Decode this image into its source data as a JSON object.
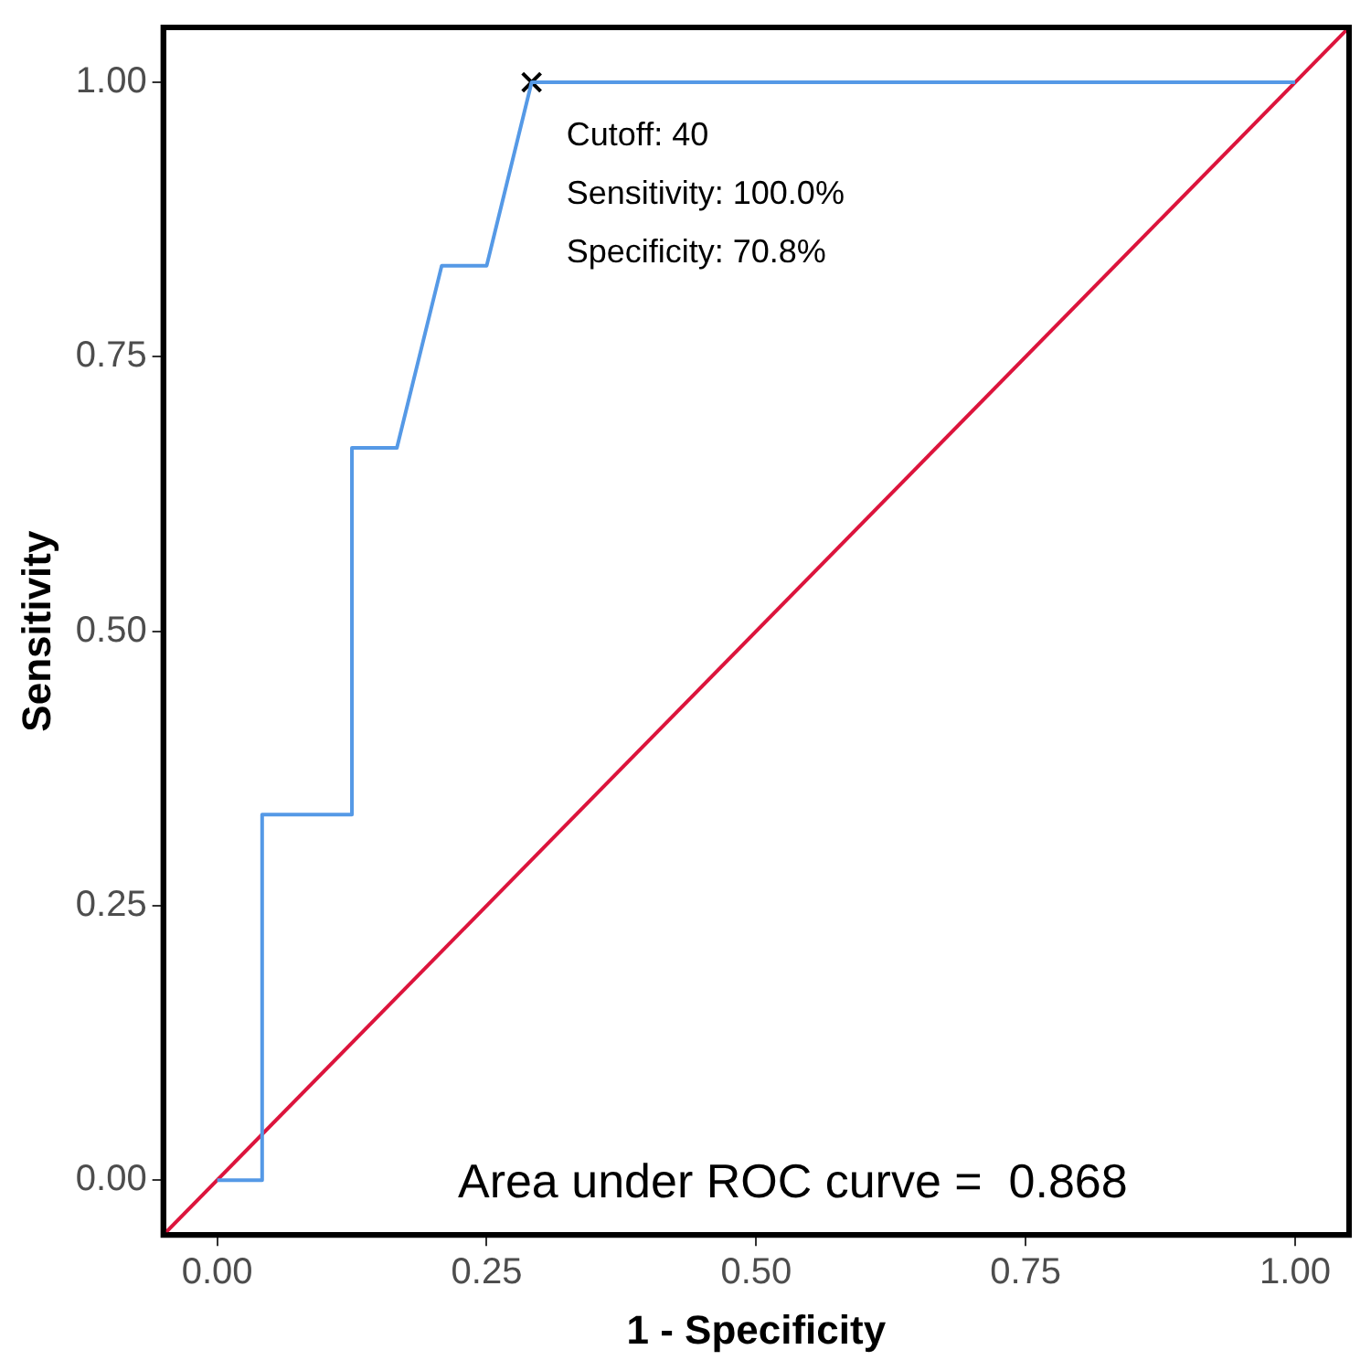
{
  "chart_data": {
    "type": "line",
    "xlabel": "1 - Specificity",
    "ylabel": "Sensitivity",
    "xlim": [
      -0.05,
      1.05
    ],
    "ylim": [
      -0.05,
      1.05
    ],
    "xticks": [
      {
        "value": 0,
        "label": "0.00"
      },
      {
        "value": 0.25,
        "label": "0.25"
      },
      {
        "value": 0.5,
        "label": "0.50"
      },
      {
        "value": 0.75,
        "label": "0.75"
      },
      {
        "value": 1,
        "label": "1.00"
      }
    ],
    "yticks": [
      {
        "value": 0,
        "label": "0.00"
      },
      {
        "value": 0.25,
        "label": "0.25"
      },
      {
        "value": 0.5,
        "label": "0.50"
      },
      {
        "value": 0.75,
        "label": "0.75"
      },
      {
        "value": 1,
        "label": "1.00"
      }
    ],
    "grid": false,
    "legend": false,
    "marker": "none",
    "line_style": "solid",
    "series": [
      {
        "color": "#5599e6",
        "x": [
          0,
          0.0417,
          0.0417,
          0.125,
          0.125,
          0.1667,
          0.2083,
          0.25,
          0.2917,
          1
        ],
        "values": [
          0,
          0,
          0.333,
          0.333,
          0.667,
          0.667,
          0.833,
          0.833,
          1,
          1
        ]
      },
      {
        "color": "#dc143c",
        "x": [
          -0.05,
          1.05
        ],
        "values": [
          -0.05,
          1.05
        ]
      },
      {
        "type": "scatter",
        "color": "#000000",
        "marker": "cross",
        "x": [
          0.2917
        ],
        "values": [
          1
        ]
      }
    ],
    "annotations": [
      "Cutoff: 40",
      "Sensitivity: 100.0%",
      "Specificity: 70.8%",
      "Area under ROC curve =  0.868"
    ]
  }
}
